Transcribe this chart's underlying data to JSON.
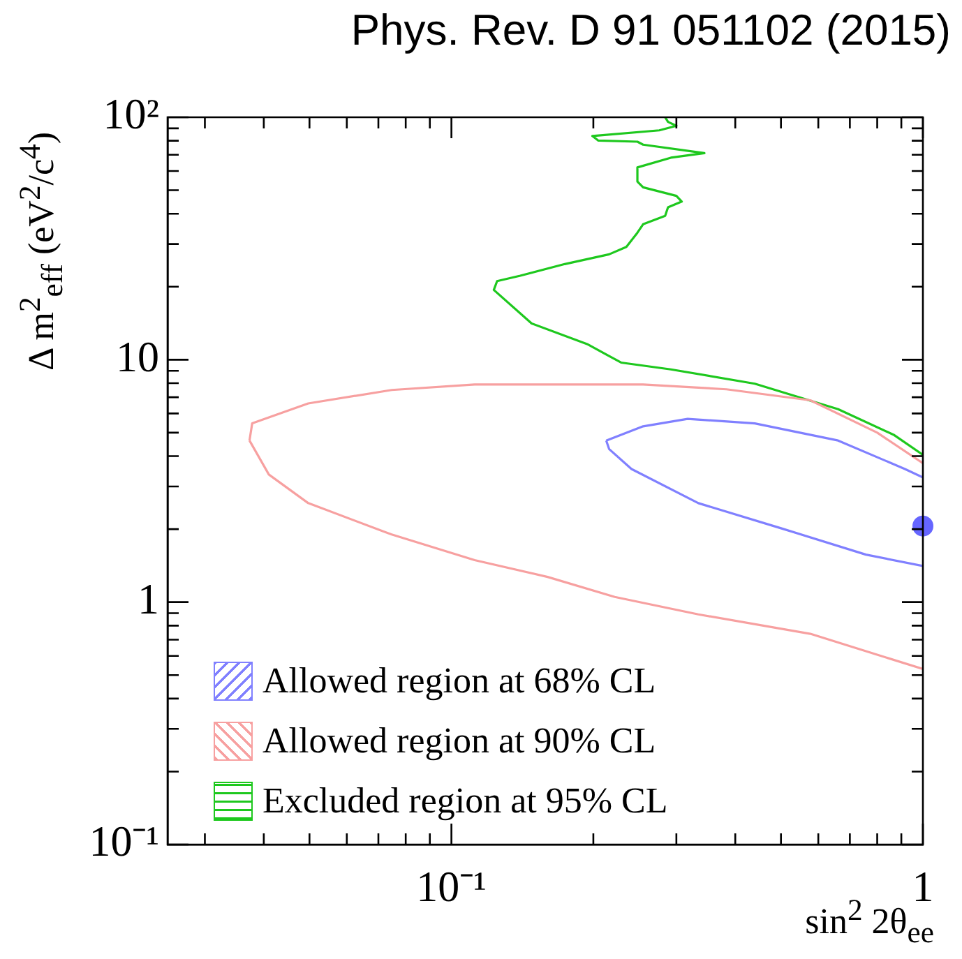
{
  "chart_data": {
    "type": "line",
    "title": "Phys. Rev. D 91 051102 (2015)",
    "xlabel": "sin$^{2}$ 2θ$_{ee}$",
    "ylabel": "Δ m$^{2}$$_{eff}$ (eV$^{2}$/c$^{4}$)",
    "log": "xy",
    "grid": false,
    "legend": "bottom left",
    "xlim": [
      0.025,
      1
    ],
    "ylim": [
      0.1,
      100
    ],
    "xticks": [
      {
        "value": 0.03,
        "label": null
      },
      {
        "value": 0.04,
        "label": null
      },
      {
        "value": 0.05,
        "label": null
      },
      {
        "value": 0.06,
        "label": null
      },
      {
        "value": 0.07,
        "label": null
      },
      {
        "value": 0.08,
        "label": null
      },
      {
        "value": 0.09,
        "label": null
      },
      {
        "value": 0.1,
        "label": "10⁻¹"
      },
      {
        "value": 0.2,
        "label": null
      },
      {
        "value": 0.3,
        "label": null
      },
      {
        "value": 0.4,
        "label": null
      },
      {
        "value": 0.5,
        "label": null
      },
      {
        "value": 0.6,
        "label": null
      },
      {
        "value": 0.7,
        "label": null
      },
      {
        "value": 0.8,
        "label": null
      },
      {
        "value": 0.9,
        "label": null
      },
      {
        "value": 1,
        "label": "1"
      }
    ],
    "yticks": [
      {
        "value": 0.1,
        "label": "10⁻¹"
      },
      {
        "value": 0.2,
        "label": null
      },
      {
        "value": 0.3,
        "label": null
      },
      {
        "value": 0.4,
        "label": null
      },
      {
        "value": 0.5,
        "label": null
      },
      {
        "value": 0.6,
        "label": null
      },
      {
        "value": 0.7,
        "label": null
      },
      {
        "value": 0.8,
        "label": null
      },
      {
        "value": 0.9,
        "label": null
      },
      {
        "value": 1,
        "label": "1"
      },
      {
        "value": 2,
        "label": null
      },
      {
        "value": 3,
        "label": null
      },
      {
        "value": 4,
        "label": null
      },
      {
        "value": 5,
        "label": null
      },
      {
        "value": 6,
        "label": null
      },
      {
        "value": 7,
        "label": null
      },
      {
        "value": 8,
        "label": null
      },
      {
        "value": 9,
        "label": null
      },
      {
        "value": 10,
        "label": "10"
      },
      {
        "value": 20,
        "label": null
      },
      {
        "value": 30,
        "label": null
      },
      {
        "value": 40,
        "label": null
      },
      {
        "value": 50,
        "label": null
      },
      {
        "value": 60,
        "label": null
      },
      {
        "value": 70,
        "label": null
      },
      {
        "value": 80,
        "label": null
      },
      {
        "value": 90,
        "label": null
      },
      {
        "value": 100,
        "label": "10²"
      }
    ],
    "series": [
      {
        "name": "Allowed region at 68% CL",
        "type": "line",
        "marker": "none",
        "color": "#8080ff",
        "x": [
          0.213,
          0.255,
          0.317,
          0.44,
          0.661,
          0.916,
          1
        ],
        "values": [
          4.64,
          5.31,
          5.7,
          5.46,
          4.64,
          3.54,
          3.27
        ]
      },
      {
        "type": "line",
        "marker": "none",
        "color": "#8080ff",
        "x": [
          0.213,
          0.216,
          0.241,
          0.334,
          0.503,
          0.757,
          1
        ],
        "values": [
          4.64,
          4.28,
          3.54,
          2.56,
          2.01,
          1.57,
          1.41
        ]
      },
      {
        "name": "Allowed region at 90% CL",
        "type": "line",
        "marker": "none",
        "color": "#f7a0a0",
        "x": [
          0.0373,
          0.0378,
          0.0497,
          0.0747,
          0.112,
          0.255,
          0.383,
          0.577,
          0.8,
          1
        ],
        "values": [
          4.64,
          5.46,
          6.6,
          7.5,
          7.9,
          7.9,
          7.55,
          6.8,
          5.0,
          3.74
        ]
      },
      {
        "type": "line",
        "marker": "none",
        "color": "#f7a0a0",
        "x": [
          0.0373,
          0.041,
          0.0497,
          0.0747,
          0.112,
          0.16,
          0.222,
          0.334,
          0.577,
          1
        ],
        "values": [
          4.64,
          3.36,
          2.56,
          1.9,
          1.49,
          1.27,
          1.05,
          0.89,
          0.74,
          0.53
        ]
      },
      {
        "name": "Excluded region at 95% CL",
        "type": "line",
        "marker": "none",
        "color": "#1ec81e",
        "x": [
          0.284,
          0.288,
          0.3,
          0.276,
          0.199,
          0.205,
          0.248,
          0.255,
          0.344,
          0.292,
          0.248,
          0.248,
          0.255,
          0.3,
          0.308,
          0.288,
          0.284,
          0.255,
          0.248,
          0.235,
          0.216,
          0.174,
          0.14,
          0.125,
          0.123,
          0.148,
          0.194,
          0.229,
          0.292,
          0.44,
          0.661,
          0.867,
          1
        ],
        "values": [
          100,
          95.7,
          92.2,
          88.3,
          83.7,
          80.1,
          79.3,
          77.1,
          71.1,
          68.1,
          62.1,
          54.3,
          51.4,
          47.4,
          44.9,
          42.5,
          39.2,
          36.2,
          33.4,
          29.2,
          27.2,
          24.8,
          22.2,
          21.1,
          19.4,
          14.1,
          11.6,
          9.73,
          9.12,
          7.96,
          6.25,
          4.9,
          4.05
        ]
      },
      {
        "type": "scatter",
        "marker": "circle",
        "color": "#6666ff",
        "x": [
          1
        ],
        "values": [
          2.06
        ]
      }
    ]
  }
}
